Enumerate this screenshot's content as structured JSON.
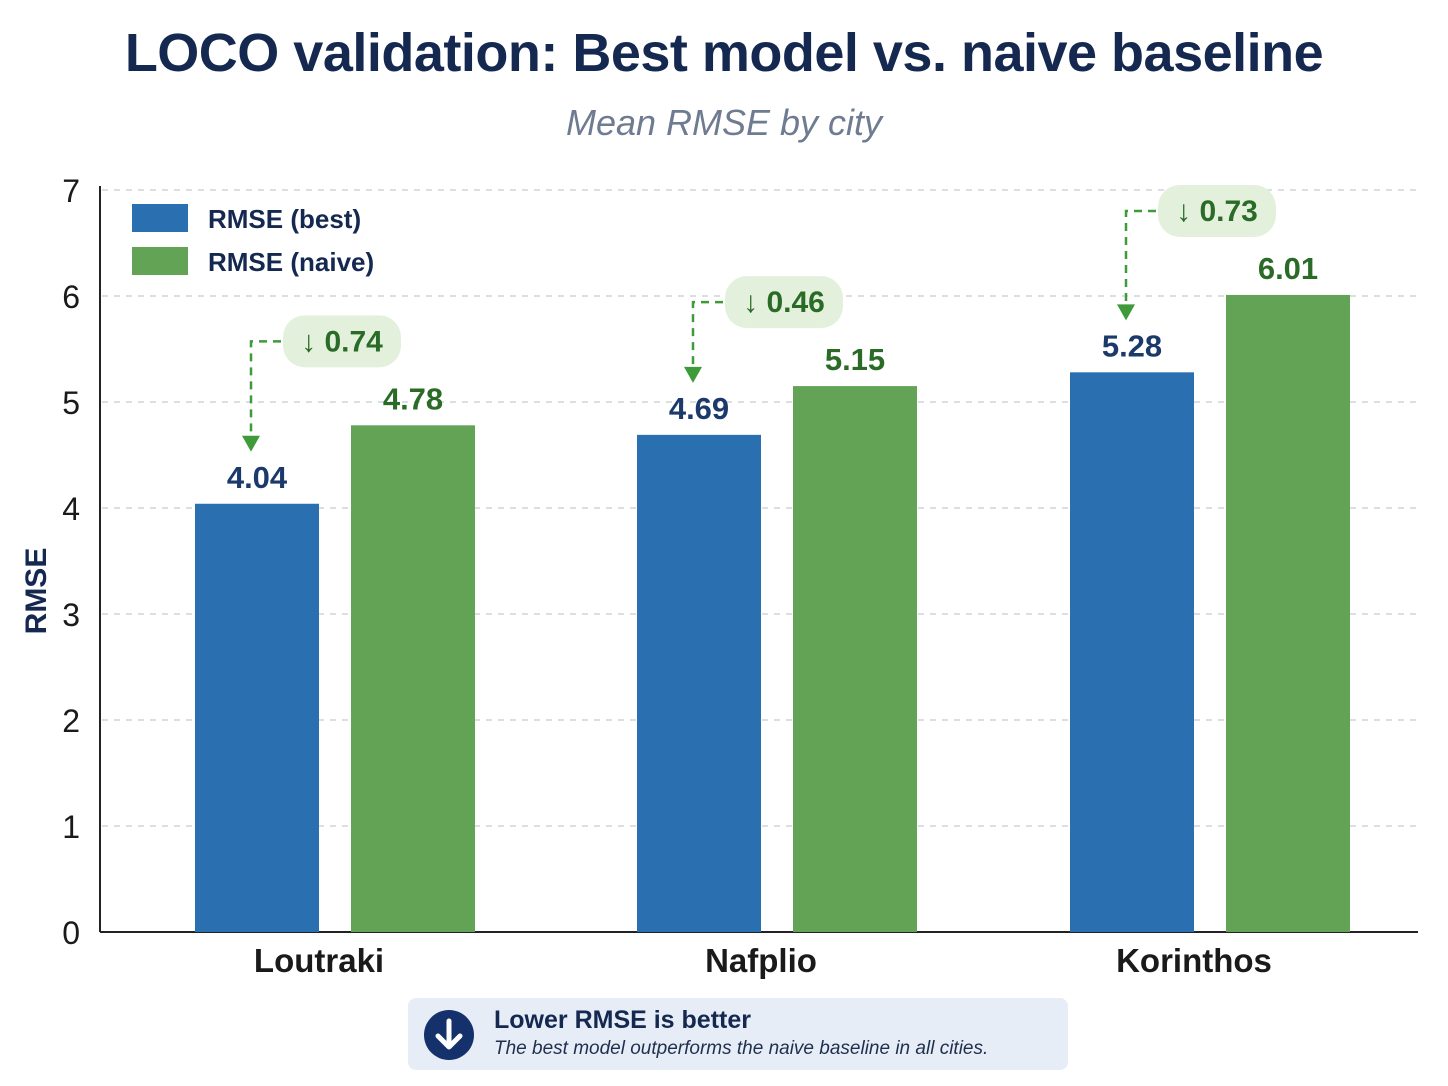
{
  "chart_data": {
    "type": "bar",
    "title": "LOCO validation: Best model vs. naive baseline",
    "subtitle": "Mean RMSE by city",
    "xlabel": "",
    "ylabel": "RMSE",
    "ylim": [
      0,
      7
    ],
    "yticks": [
      "0",
      "1",
      "2",
      "3",
      "4",
      "5",
      "6",
      "7"
    ],
    "grid": true,
    "legend_position": "top-left",
    "categories": [
      "Loutraki",
      "Nafplio",
      "Korinthos"
    ],
    "series": [
      {
        "name": "RMSE (best)",
        "color": "#2a6fb0",
        "values": [
          4.04,
          4.69,
          5.28
        ],
        "labels": [
          "4.04",
          "4.69",
          "5.28"
        ]
      },
      {
        "name": "RMSE (naive)",
        "color": "#62a356",
        "values": [
          4.78,
          5.15,
          6.01
        ],
        "labels": [
          "4.78",
          "5.15",
          "6.01"
        ]
      }
    ],
    "annotations": [
      {
        "category": "Loutraki",
        "text": "↓ 0.74"
      },
      {
        "category": "Nafplio",
        "text": "↓ 0.46"
      },
      {
        "category": "Korinthos",
        "text": "↓ 0.73"
      }
    ],
    "label_colors": {
      "best": "#1b3a6b",
      "naive": "#2b6b28"
    }
  },
  "note": {
    "icon": "down-arrow-icon",
    "title": "Lower RMSE is better",
    "text": "The best model outperforms the naive baseline in all cities."
  }
}
